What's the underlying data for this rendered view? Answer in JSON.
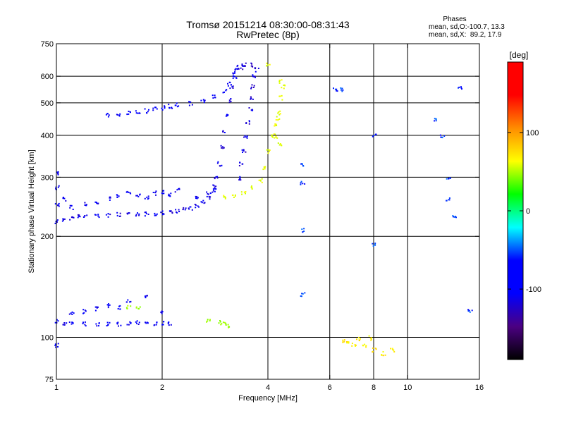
{
  "header": {
    "title": "Tromsø 20151214 08:30:00-08:31:43",
    "subtitle": "RwPretec (8p)",
    "phases_title": "Phases",
    "phases_o": "mean, sd,O:-100.7, 13.3",
    "phases_x": "mean, sd,X:  89.2, 17.9"
  },
  "colorbar": {
    "label": "[deg]",
    "range": [
      -190,
      190
    ],
    "ticks": [
      100,
      0,
      -100
    ],
    "colors": [
      "#000000",
      "#4b0082",
      "#0000ff",
      "#0000ff",
      "#00ffff",
      "#00ff00",
      "#ffff00",
      "#ff8c00",
      "#ff0000",
      "#ff0000"
    ]
  },
  "chart_data": {
    "type": "scatter",
    "title": "Tromsø 20151214 08:30:00-08:31:43",
    "subtitle": "RwPretec (8p)",
    "xlabel": "Frequency [MHz]",
    "ylabel": "Stationary phase Virtual Height [km]",
    "xscale": "log",
    "yscale": "log",
    "xlim": [
      1,
      16
    ],
    "ylim": [
      75,
      750
    ],
    "xticks": [
      1,
      2,
      4,
      6,
      8,
      10,
      16
    ],
    "xtick_labels": [
      "1",
      "2",
      "4",
      "6",
      "8",
      "10",
      "16"
    ],
    "xgrid": [
      2,
      4,
      6,
      8,
      10
    ],
    "yticks": [
      75,
      100,
      200,
      300,
      400,
      500,
      600,
      750
    ],
    "ytick_labels": [
      "75",
      "100",
      "200",
      "300",
      "400",
      "500",
      "600",
      "750"
    ],
    "ygrid": [
      100,
      200,
      300,
      400,
      500,
      600
    ],
    "grid": true,
    "color_variable": "phase [deg]",
    "series": [
      {
        "description": "O-mode F-region trace",
        "phase": -105,
        "points": [
          [
            1.0,
            222
          ],
          [
            1.05,
            226
          ],
          [
            1.1,
            228
          ],
          [
            1.15,
            230
          ],
          [
            1.2,
            231
          ],
          [
            1.3,
            232
          ],
          [
            1.4,
            232
          ],
          [
            1.5,
            233
          ],
          [
            1.6,
            233
          ],
          [
            1.7,
            233
          ],
          [
            1.8,
            234
          ],
          [
            1.9,
            235
          ],
          [
            2.0,
            236
          ],
          [
            2.1,
            237
          ],
          [
            2.2,
            239
          ],
          [
            2.3,
            241
          ],
          [
            2.4,
            244
          ],
          [
            2.5,
            248
          ],
          [
            2.6,
            254
          ],
          [
            2.7,
            263
          ],
          [
            2.8,
            282
          ],
          [
            2.85,
            300
          ],
          [
            2.9,
            330
          ],
          [
            2.95,
            370
          ],
          [
            3.0,
            410
          ],
          [
            3.05,
            460
          ],
          [
            3.1,
            510
          ],
          [
            3.15,
            560
          ],
          [
            3.2,
            600
          ],
          [
            3.25,
            630
          ],
          [
            3.3,
            640
          ],
          [
            3.4,
            650
          ]
        ]
      },
      {
        "description": "O-mode spread around 230-270 km",
        "phase": -100,
        "points": [
          [
            1.0,
            250
          ],
          [
            1.0,
            280
          ],
          [
            1.0,
            310
          ],
          [
            1.05,
            260
          ],
          [
            1.1,
            245
          ],
          [
            1.2,
            250
          ],
          [
            1.3,
            255
          ],
          [
            1.4,
            260
          ],
          [
            1.5,
            265
          ],
          [
            1.6,
            270
          ],
          [
            1.7,
            265
          ],
          [
            1.8,
            262
          ],
          [
            1.9,
            270
          ],
          [
            2.0,
            272
          ],
          [
            2.1,
            268
          ],
          [
            2.2,
            275
          ],
          [
            2.5,
            262
          ],
          [
            2.7,
            270
          ],
          [
            2.8,
            275
          ]
        ]
      },
      {
        "description": "Second O trace (multi-hop) near 460-520 km",
        "phase": -95,
        "points": [
          [
            1.4,
            462
          ],
          [
            1.5,
            465
          ],
          [
            1.6,
            470
          ],
          [
            1.7,
            472
          ],
          [
            1.8,
            475
          ],
          [
            1.9,
            480
          ],
          [
            2.0,
            485
          ],
          [
            2.1,
            490
          ],
          [
            2.2,
            495
          ],
          [
            2.4,
            500
          ],
          [
            2.6,
            510
          ],
          [
            2.8,
            525
          ],
          [
            3.0,
            545
          ],
          [
            3.1,
            570
          ],
          [
            3.2,
            610
          ]
        ]
      },
      {
        "description": "O-mode band at 3.4-3.8 MHz",
        "phase": -110,
        "points": [
          [
            3.3,
            300
          ],
          [
            3.35,
            330
          ],
          [
            3.4,
            360
          ],
          [
            3.45,
            400
          ],
          [
            3.5,
            440
          ],
          [
            3.55,
            480
          ],
          [
            3.6,
            520
          ],
          [
            3.6,
            560
          ],
          [
            3.65,
            600
          ],
          [
            3.7,
            630
          ],
          [
            3.55,
            650
          ],
          [
            3.4,
            640
          ]
        ]
      },
      {
        "description": "X-mode trace",
        "phase": 90,
        "points": [
          [
            3.0,
            262
          ],
          [
            3.2,
            266
          ],
          [
            3.4,
            272
          ],
          [
            3.6,
            280
          ],
          [
            3.8,
            295
          ],
          [
            3.9,
            320
          ],
          [
            4.0,
            360
          ],
          [
            4.1,
            400
          ],
          [
            4.2,
            430
          ],
          [
            4.3,
            470
          ],
          [
            4.35,
            520
          ],
          [
            4.4,
            560
          ],
          [
            4.3,
            580
          ],
          [
            4.0,
            650
          ],
          [
            4.2,
            400
          ],
          [
            4.3,
            380
          ],
          [
            4.25,
            450
          ]
        ]
      },
      {
        "description": "E-region echoes",
        "phase": -100,
        "points": [
          [
            1.0,
            95
          ],
          [
            1.0,
            112
          ],
          [
            1.05,
            110
          ],
          [
            1.1,
            111
          ],
          [
            1.2,
            110
          ],
          [
            1.3,
            110
          ],
          [
            1.4,
            110
          ],
          [
            1.5,
            110
          ],
          [
            1.6,
            111
          ],
          [
            1.7,
            111
          ],
          [
            1.8,
            110
          ],
          [
            1.9,
            110
          ],
          [
            2.0,
            111
          ],
          [
            2.1,
            110
          ],
          [
            1.1,
            118
          ],
          [
            1.2,
            120
          ],
          [
            1.3,
            122
          ],
          [
            1.4,
            125
          ],
          [
            1.5,
            123
          ],
          [
            1.6,
            128
          ],
          [
            1.8,
            132
          ],
          [
            2.0,
            120
          ]
        ]
      },
      {
        "description": "E-region echoes, green-yellow",
        "phase": 60,
        "points": [
          [
            1.6,
            124
          ],
          [
            1.7,
            122
          ],
          [
            2.7,
            112
          ],
          [
            2.9,
            111
          ],
          [
            3.0,
            110
          ],
          [
            3.1,
            109
          ]
        ]
      },
      {
        "description": "Low echoes at 6-9 MHz",
        "phase": 110,
        "points": [
          [
            6.5,
            98
          ],
          [
            6.7,
            97
          ],
          [
            7.0,
            96
          ],
          [
            7.5,
            95
          ],
          [
            8.0,
            92
          ],
          [
            8.5,
            90
          ],
          [
            9.0,
            92
          ],
          [
            7.2,
            99
          ],
          [
            7.8,
            100
          ]
        ]
      },
      {
        "description": "Scattered points",
        "phase": -50,
        "points": [
          [
            5.0,
            330
          ],
          [
            5.0,
            290
          ],
          [
            5.0,
            210
          ],
          [
            5.0,
            135
          ],
          [
            6.2,
            550
          ],
          [
            6.5,
            550
          ],
          [
            8.0,
            190
          ],
          [
            8.0,
            400
          ],
          [
            12.0,
            450
          ],
          [
            13.0,
            300
          ],
          [
            13.0,
            260
          ],
          [
            15.0,
            120
          ],
          [
            14.0,
            560
          ],
          [
            13.5,
            230
          ],
          [
            12.5,
            400
          ]
        ]
      }
    ]
  }
}
